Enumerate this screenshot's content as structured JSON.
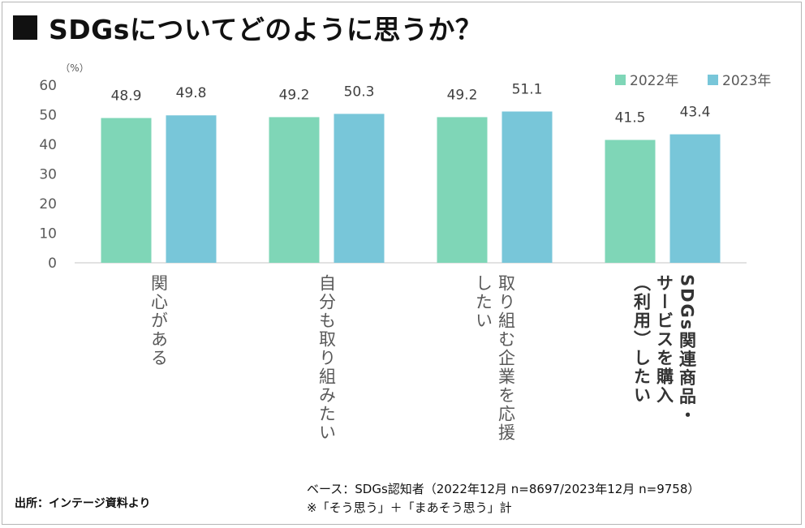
{
  "title": "SDGsについてどのように思うか？",
  "source": "出所：インテージ資料より",
  "note_base": "ベース：SDGs認知者（2022年12月 n=8697/2023年12月 n=9758）",
  "note_answer": "※「そう思う」＋「まあそう思う」計",
  "colors": {
    "series_2022": "#7fd6b7",
    "series_2023": "#78c6d9",
    "axis": "#d9d9d9"
  },
  "chart_data": {
    "type": "bar",
    "unit_label": "（%）",
    "ylim": [
      0,
      60
    ],
    "yticks": [
      "0",
      "10",
      "20",
      "30",
      "40",
      "50",
      "60"
    ],
    "ytick_values": [
      0,
      10,
      20,
      30,
      40,
      50,
      60
    ],
    "grid": false,
    "legend_position": "top-right",
    "categories": [
      {
        "lines": [
          "関心がある"
        ],
        "bold": false
      },
      {
        "lines": [
          "自分も取り組みたい"
        ],
        "bold": false
      },
      {
        "lines": [
          "取り組む企業を応援",
          "したい"
        ],
        "bold": false
      },
      {
        "lines": [
          "SDGs関連商品・",
          "サービスを購入",
          "（利用）したい"
        ],
        "bold": true
      }
    ],
    "series": [
      {
        "name": "2022年",
        "values": [
          48.9,
          49.2,
          49.2,
          41.5
        ],
        "labels": [
          "48.9",
          "49.2",
          "49.2",
          "41.5"
        ]
      },
      {
        "name": "2023年",
        "values": [
          49.8,
          50.3,
          51.1,
          43.4
        ],
        "labels": [
          "49.8",
          "50.3",
          "51.1",
          "43.4"
        ]
      }
    ]
  }
}
